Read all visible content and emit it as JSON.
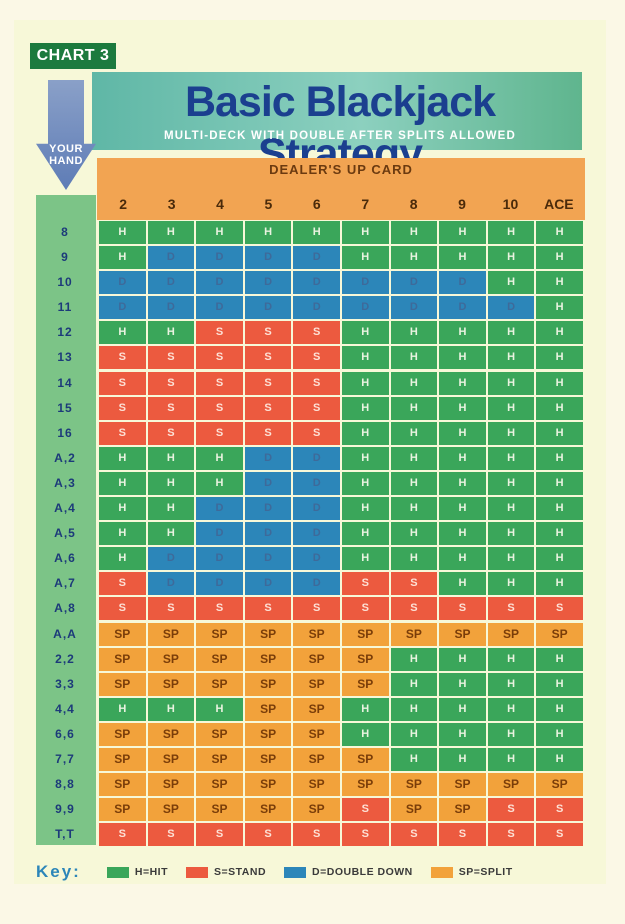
{
  "badge": "CHART 3",
  "title": "Basic Blackjack Strategy",
  "subtitle": "MULTI-DECK WITH DOUBLE AFTER SPLITS ALLOWED",
  "arrow_label": "YOUR HAND",
  "dealer_label": "DEALER'S UP CARD",
  "up_cards": [
    "2",
    "3",
    "4",
    "5",
    "6",
    "7",
    "8",
    "9",
    "10",
    "ACE"
  ],
  "colors": {
    "H": "#3aa65a",
    "S": "#ec5a3f",
    "D": "#2c86b9",
    "SP": "#f2a23b"
  },
  "rows": [
    {
      "hand": "8",
      "cells": [
        "H",
        "H",
        "H",
        "H",
        "H",
        "H",
        "H",
        "H",
        "H",
        "H"
      ]
    },
    {
      "hand": "9",
      "cells": [
        "H",
        "D",
        "D",
        "D",
        "D",
        "H",
        "H",
        "H",
        "H",
        "H"
      ]
    },
    {
      "hand": "10",
      "cells": [
        "D",
        "D",
        "D",
        "D",
        "D",
        "D",
        "D",
        "D",
        "H",
        "H"
      ]
    },
    {
      "hand": "11",
      "cells": [
        "D",
        "D",
        "D",
        "D",
        "D",
        "D",
        "D",
        "D",
        "D",
        "H"
      ]
    },
    {
      "hand": "12",
      "cells": [
        "H",
        "H",
        "S",
        "S",
        "S",
        "H",
        "H",
        "H",
        "H",
        "H"
      ]
    },
    {
      "hand": "13",
      "cells": [
        "S",
        "S",
        "S",
        "S",
        "S",
        "H",
        "H",
        "H",
        "H",
        "H"
      ]
    },
    {
      "hand": "14",
      "cells": [
        "S",
        "S",
        "S",
        "S",
        "S",
        "H",
        "H",
        "H",
        "H",
        "H"
      ]
    },
    {
      "hand": "15",
      "cells": [
        "S",
        "S",
        "S",
        "S",
        "S",
        "H",
        "H",
        "H",
        "H",
        "H"
      ]
    },
    {
      "hand": "16",
      "cells": [
        "S",
        "S",
        "S",
        "S",
        "S",
        "H",
        "H",
        "H",
        "H",
        "H"
      ]
    },
    {
      "hand": "A,2",
      "cells": [
        "H",
        "H",
        "H",
        "D",
        "D",
        "H",
        "H",
        "H",
        "H",
        "H"
      ]
    },
    {
      "hand": "A,3",
      "cells": [
        "H",
        "H",
        "H",
        "D",
        "D",
        "H",
        "H",
        "H",
        "H",
        "H"
      ]
    },
    {
      "hand": "A,4",
      "cells": [
        "H",
        "H",
        "D",
        "D",
        "D",
        "H",
        "H",
        "H",
        "H",
        "H"
      ]
    },
    {
      "hand": "A,5",
      "cells": [
        "H",
        "H",
        "D",
        "D",
        "D",
        "H",
        "H",
        "H",
        "H",
        "H"
      ]
    },
    {
      "hand": "A,6",
      "cells": [
        "H",
        "D",
        "D",
        "D",
        "D",
        "H",
        "H",
        "H",
        "H",
        "H"
      ]
    },
    {
      "hand": "A,7",
      "cells": [
        "S",
        "D",
        "D",
        "D",
        "D",
        "S",
        "S",
        "H",
        "H",
        "H"
      ]
    },
    {
      "hand": "A,8",
      "cells": [
        "S",
        "S",
        "S",
        "S",
        "S",
        "S",
        "S",
        "S",
        "S",
        "S"
      ]
    },
    {
      "hand": "A,A",
      "cells": [
        "SP",
        "SP",
        "SP",
        "SP",
        "SP",
        "SP",
        "SP",
        "SP",
        "SP",
        "SP"
      ]
    },
    {
      "hand": "2,2",
      "cells": [
        "SP",
        "SP",
        "SP",
        "SP",
        "SP",
        "SP",
        "H",
        "H",
        "H",
        "H"
      ]
    },
    {
      "hand": "3,3",
      "cells": [
        "SP",
        "SP",
        "SP",
        "SP",
        "SP",
        "SP",
        "H",
        "H",
        "H",
        "H"
      ]
    },
    {
      "hand": "4,4",
      "cells": [
        "H",
        "H",
        "H",
        "SP",
        "SP",
        "H",
        "H",
        "H",
        "H",
        "H"
      ]
    },
    {
      "hand": "6,6",
      "cells": [
        "SP",
        "SP",
        "SP",
        "SP",
        "SP",
        "H",
        "H",
        "H",
        "H",
        "H"
      ]
    },
    {
      "hand": "7,7",
      "cells": [
        "SP",
        "SP",
        "SP",
        "SP",
        "SP",
        "SP",
        "H",
        "H",
        "H",
        "H"
      ]
    },
    {
      "hand": "8,8",
      "cells": [
        "SP",
        "SP",
        "SP",
        "SP",
        "SP",
        "SP",
        "SP",
        "SP",
        "SP",
        "SP"
      ]
    },
    {
      "hand": "9,9",
      "cells": [
        "SP",
        "SP",
        "SP",
        "SP",
        "SP",
        "S",
        "SP",
        "SP",
        "S",
        "S"
      ]
    },
    {
      "hand": "T,T",
      "cells": [
        "S",
        "S",
        "S",
        "S",
        "S",
        "S",
        "S",
        "S",
        "S",
        "S"
      ]
    }
  ],
  "key": {
    "title": "Key:",
    "items": [
      {
        "code": "H",
        "label": "H=HIT"
      },
      {
        "code": "S",
        "label": "S=STAND"
      },
      {
        "code": "D",
        "label": "D=DOUBLE DOWN"
      },
      {
        "code": "SP",
        "label": "SP=SPLIT"
      }
    ]
  }
}
